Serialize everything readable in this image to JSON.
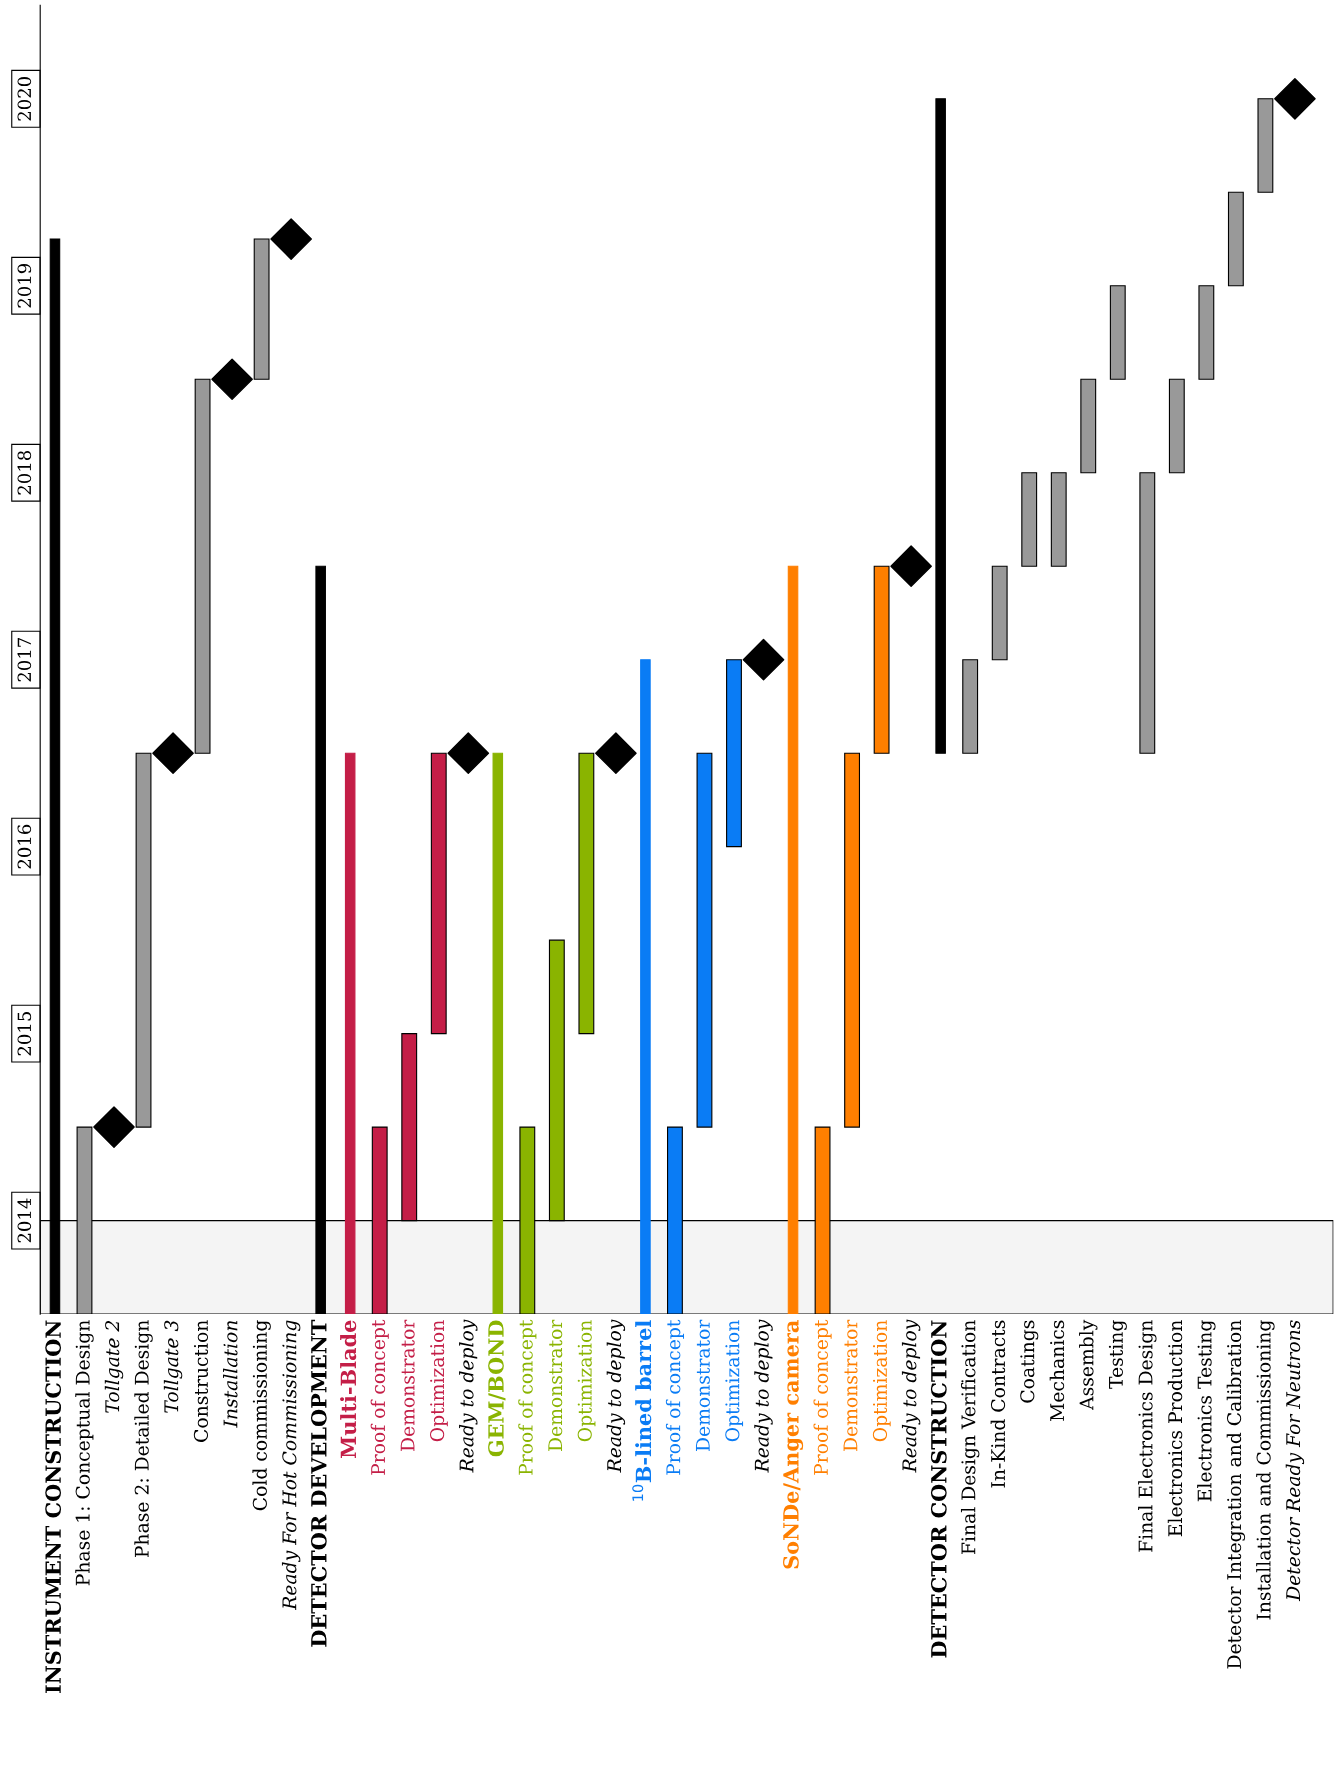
{
  "chart_data": {
    "type": "bar",
    "categories": [
      "INSTRUMENT CONSTRUCTION",
      "Phase 1: Conceptual Design",
      "Tollgate 2",
      "Phase 2: Detailed Design",
      "Tollgate 3",
      "Construction",
      "Installation",
      "Cold commissioning",
      "Ready For Hot Commissioning",
      "DETECTOR DEVELOPMENT",
      "Multi-Blade",
      "Proof of concept",
      "Demonstrator",
      "Optimization",
      "Ready to deploy",
      "GEM/BOND",
      "Proof of concept",
      "Demonstrator",
      "Optimization",
      "Ready to deploy",
      "$^{10}$B-lined barrel",
      "Proof of concept",
      "Demonstrator",
      "Optimization",
      "Ready to deploy",
      "SoNDe/Anger camera",
      "Proof of concept",
      "Demonstrator",
      "Optimization",
      "Ready to deploy",
      "DETECTOR CONSTRUCTION",
      "Final Design Verification",
      "In-Kind Contracts",
      "Coatings",
      "Mechanics",
      "Assembly",
      "Testing",
      "Final Electronics Design",
      "Electronics Production",
      "Electronics Testing",
      "Detector Integration and Calibration",
      "Installation and Commissioning",
      "Detector Ready For Neutrons"
    ],
    "series": [
      {
        "values": [
          5.75,
          null,
          null,
          null,
          null,
          null,
          null,
          null,
          null,
          4,
          3,
          null,
          null,
          null,
          null,
          3,
          null,
          null,
          null,
          null,
          3.5,
          null,
          null,
          null,
          null,
          4,
          null,
          null,
          null,
          null,
          3.5,
          null,
          null,
          null,
          null,
          null,
          null,
          null,
          null,
          null,
          null,
          null,
          null
        ],
        "base": [
          2014,
          null,
          null,
          null,
          null,
          null,
          null,
          null,
          null,
          2014,
          2014,
          null,
          null,
          null,
          null,
          2014,
          null,
          null,
          null,
          null,
          2014,
          null,
          null,
          null,
          null,
          2014,
          null,
          null,
          null,
          null,
          2017,
          null,
          null,
          null,
          null,
          null,
          null,
          null,
          null,
          null,
          null,
          null,
          null
        ],
        "colors": [
          "#000000",
          null,
          null,
          null,
          null,
          null,
          null,
          null,
          null,
          "#000000",
          "#c41e47",
          null,
          null,
          null,
          null,
          "#8ab400",
          null,
          null,
          null,
          null,
          "#0a7cf5",
          null,
          null,
          null,
          null,
          "#ff7f00",
          null,
          null,
          null,
          null,
          "#000000",
          null,
          null,
          null,
          null,
          null,
          null,
          null,
          null,
          null,
          null,
          null,
          null
        ]
      },
      {
        "values": [
          null,
          1,
          null,
          2,
          null,
          2,
          null,
          0.75,
          null,
          null,
          null,
          1,
          1,
          1.5,
          null,
          null,
          1,
          1.5,
          1.5,
          null,
          null,
          1,
          2,
          1,
          null,
          null,
          1,
          2,
          1,
          null,
          null,
          0.5,
          0.5,
          0.5,
          0.5,
          0.5,
          0.5,
          1.5,
          0.5,
          0.5,
          0.5,
          0.5,
          null
        ],
        "base": [
          null,
          2014,
          null,
          2015,
          null,
          2017,
          null,
          2019,
          null,
          null,
          null,
          2014,
          2014.5,
          2015.5,
          null,
          null,
          2014,
          2014.5,
          2015.5,
          null,
          null,
          2014,
          2015,
          2016.5,
          null,
          null,
          2014,
          2015,
          2017,
          null,
          null,
          2017,
          2017.5,
          2018,
          2018,
          2018.5,
          2019,
          2017,
          2018.5,
          2019,
          2019.5,
          2020,
          null
        ],
        "colors": [
          null,
          "#999999",
          null,
          "#999999",
          null,
          "#999999",
          null,
          "#999999",
          null,
          null,
          null,
          "#c41e47",
          "#c41e47",
          "#c41e47",
          null,
          null,
          "#8ab400",
          "#8ab400",
          "#8ab400",
          null,
          null,
          "#0a7cf5",
          "#0a7cf5",
          "#0a7cf5",
          null,
          null,
          "#ff7f00",
          "#ff7f00",
          "#ff7f00",
          null,
          null,
          "#999999",
          "#999999",
          "#999999",
          "#999999",
          "#999999",
          "#999999",
          "#999999",
          "#999999",
          "#999999",
          "#999999",
          "#999999",
          null
        ]
      },
      {
        "type": "scatter",
        "marker": "diamond",
        "values": [
          null,
          null,
          2015,
          null,
          2017,
          null,
          2019,
          null,
          2019.75,
          null,
          null,
          null,
          null,
          null,
          2017,
          null,
          null,
          null,
          null,
          2017,
          null,
          null,
          null,
          null,
          2017.5,
          null,
          null,
          null,
          null,
          2018,
          null,
          null,
          null,
          null,
          null,
          null,
          null,
          null,
          null,
          null,
          null,
          null,
          2020.5
        ],
        "colors": [
          null,
          null,
          "#000000",
          null,
          "#000000",
          null,
          "#000000",
          null,
          "#000000",
          null,
          null,
          null,
          null,
          null,
          "#000000",
          null,
          null,
          null,
          null,
          "#000000",
          null,
          null,
          null,
          null,
          "#000000",
          null,
          null,
          null,
          null,
          "#000000",
          null,
          null,
          null,
          null,
          null,
          null,
          null,
          null,
          null,
          null,
          null,
          null,
          "#000000"
        ]
      }
    ],
    "ylim": [
      2014,
      2021
    ],
    "yticks": [
      {
        "value": 2014.5,
        "label": "2014"
      },
      {
        "value": 2015.5,
        "label": "2015"
      },
      {
        "value": 2016.5,
        "label": "2016"
      },
      {
        "value": 2017.5,
        "label": "2017"
      },
      {
        "value": 2018.5,
        "label": "2018"
      },
      {
        "value": 2019.5,
        "label": "2019"
      },
      {
        "value": 2020.5,
        "label": "2020"
      }
    ],
    "bands": [
      {
        "axis": "y",
        "from": 2014,
        "to": 2014.5,
        "color": "#f4f4f4"
      }
    ],
    "grid": false
  }
}
